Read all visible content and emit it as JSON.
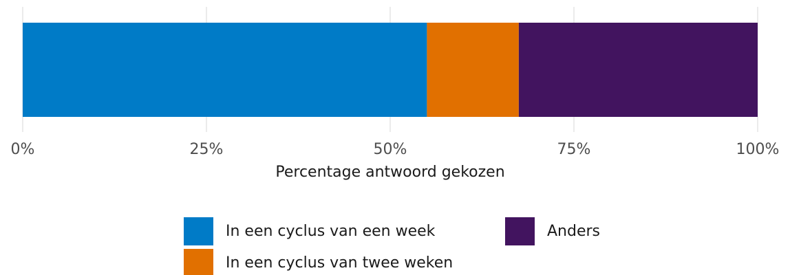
{
  "chart_data": {
    "type": "stacked-bar-horizontal",
    "xlabel": "Percentage antwoord gekozen",
    "categories": [
      null
    ],
    "series": [
      {
        "name": "In een cyclus van een week",
        "color": "#007bc7",
        "values": [
          55
        ]
      },
      {
        "name": "In een cyclus van twee weken",
        "color": "#e17000",
        "values": [
          12.5
        ]
      },
      {
        "name": "Anders",
        "color": "#42145f",
        "values": [
          32.5
        ]
      }
    ],
    "xlim": [
      0,
      100
    ],
    "xticks": [
      {
        "value": 0,
        "label": "0%"
      },
      {
        "value": 25,
        "label": "25%"
      },
      {
        "value": 50,
        "label": "50%"
      },
      {
        "value": 75,
        "label": "75%"
      },
      {
        "value": 100,
        "label": "100%"
      }
    ],
    "grid": true,
    "legend": "bottom"
  }
}
